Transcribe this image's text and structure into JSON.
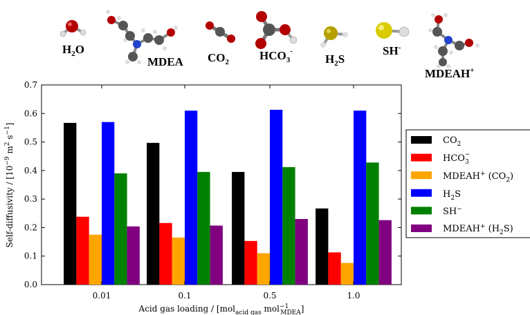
{
  "molecules": [
    {
      "name": "h2o",
      "label": "H",
      "sub": "2",
      "sup": "",
      "rest": "O"
    },
    {
      "name": "mdea",
      "label": "MDEA",
      "sub": "",
      "sup": "",
      "rest": ""
    },
    {
      "name": "co2",
      "label": "CO",
      "sub": "2",
      "sup": "",
      "rest": ""
    },
    {
      "name": "hco3",
      "label": "HCO",
      "sub": "3",
      "sup": "-",
      "rest": ""
    },
    {
      "name": "h2s",
      "label": "H",
      "sub": "2",
      "sup": "",
      "rest": "S"
    },
    {
      "name": "sh",
      "label": "SH",
      "sub": "",
      "sup": "-",
      "rest": ""
    },
    {
      "name": "mdeah",
      "label": "MDEAH",
      "sub": "",
      "sup": "+",
      "rest": ""
    }
  ],
  "chart_data": {
    "type": "bar",
    "categories": [
      "0.01",
      "0.1",
      "0.5",
      "1.0"
    ],
    "series": [
      {
        "name": "CO₂",
        "color": "#000000",
        "values": [
          0.567,
          0.497,
          0.395,
          0.267
        ]
      },
      {
        "name": "HCO₃⁻",
        "color": "#ff0000",
        "values": [
          0.238,
          0.216,
          0.153,
          0.113
        ]
      },
      {
        "name": "MDEAH⁺ (CO₂)",
        "color": "#ffa500",
        "values": [
          0.175,
          0.165,
          0.11,
          0.076
        ]
      },
      {
        "name": "H₂S",
        "color": "#0000ff",
        "values": [
          0.57,
          0.61,
          0.613,
          0.61
        ]
      },
      {
        "name": "SH⁻",
        "color": "#008000",
        "values": [
          0.39,
          0.395,
          0.412,
          0.428
        ]
      },
      {
        "name": "MDEAH⁺ (H₂S)",
        "color": "#800080",
        "values": [
          0.204,
          0.207,
          0.23,
          0.226
        ]
      }
    ],
    "xlabel": "Acid gas loading / [mol_acid gas mol_MDEA^-1]",
    "ylabel": "Self-diffusivity / [10^-9 m^2 s^-1]",
    "ylim": [
      0,
      0.7
    ],
    "yticks": [
      "0.0",
      "0.1",
      "0.2",
      "0.3",
      "0.4",
      "0.5",
      "0.6",
      "0.7"
    ],
    "grid": false,
    "legend_position": "right"
  }
}
